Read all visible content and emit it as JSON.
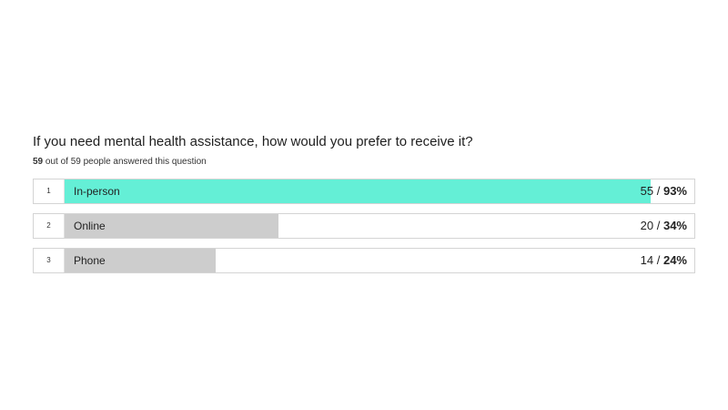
{
  "question": {
    "title": "If you need mental health assistance, how would you prefer to receive it?",
    "answered_count": "59",
    "answered_suffix": " out of 59 people answered this question"
  },
  "colors": {
    "top_bar": "#64EFD6",
    "other_bar": "#CDCDCD"
  },
  "chart_data": {
    "type": "bar",
    "orientation": "horizontal",
    "title": "If you need mental health assistance, how would you prefer to receive it?",
    "total_respondents": 59,
    "answered": 59,
    "categories": [
      "In-person",
      "Online",
      "Phone"
    ],
    "ranks": [
      "1",
      "2",
      "3"
    ],
    "counts": [
      55,
      20,
      14
    ],
    "percentages": [
      93,
      34,
      24
    ],
    "xlim": [
      0,
      100
    ]
  },
  "rows": [
    {
      "rank": "1",
      "label": "In-person",
      "count": "55",
      "sep": " / ",
      "percent": "93%",
      "fill": 0.93,
      "highlight": true
    },
    {
      "rank": "2",
      "label": "Online",
      "count": "20",
      "sep": " / ",
      "percent": "34%",
      "fill": 0.34,
      "highlight": false
    },
    {
      "rank": "3",
      "label": "Phone",
      "count": "14",
      "sep": " / ",
      "percent": "24%",
      "fill": 0.24,
      "highlight": false
    }
  ]
}
